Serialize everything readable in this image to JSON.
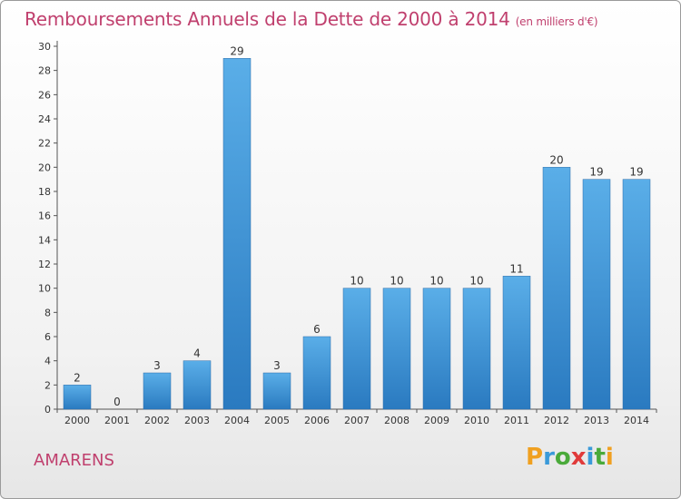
{
  "header": {
    "title": "Remboursements Annuels de la Dette de 2000 à 2014",
    "subtitle": "(en milliers d'€)"
  },
  "commune": "AMARENS",
  "logo": {
    "letters": [
      "P",
      "r",
      "o",
      "x",
      "i",
      "t",
      "i"
    ],
    "colors": [
      "#f0a020",
      "#3a9ad9",
      "#4aaa3a",
      "#e03a3a",
      "#3a9ad9",
      "#4aaa3a",
      "#f0a020"
    ]
  },
  "chart_data": {
    "type": "bar",
    "categories": [
      "2000",
      "2001",
      "2002",
      "2003",
      "2004",
      "2005",
      "2006",
      "2007",
      "2008",
      "2009",
      "2010",
      "2011",
      "2012",
      "2013",
      "2014"
    ],
    "values": [
      2,
      0,
      3,
      4,
      29,
      3,
      6,
      10,
      10,
      10,
      10,
      11,
      20,
      19,
      19
    ],
    "data_labels": [
      "2",
      "0",
      "3",
      "4",
      "29",
      "3",
      "6",
      "10",
      "10",
      "10",
      "10",
      "11",
      "20",
      "19",
      "19"
    ],
    "ylim": [
      0,
      30
    ],
    "yticks": [
      0,
      2,
      4,
      6,
      8,
      10,
      12,
      14,
      16,
      18,
      20,
      22,
      24,
      26,
      28,
      30
    ],
    "grid": false,
    "bar_color": "#4a9ee0"
  }
}
